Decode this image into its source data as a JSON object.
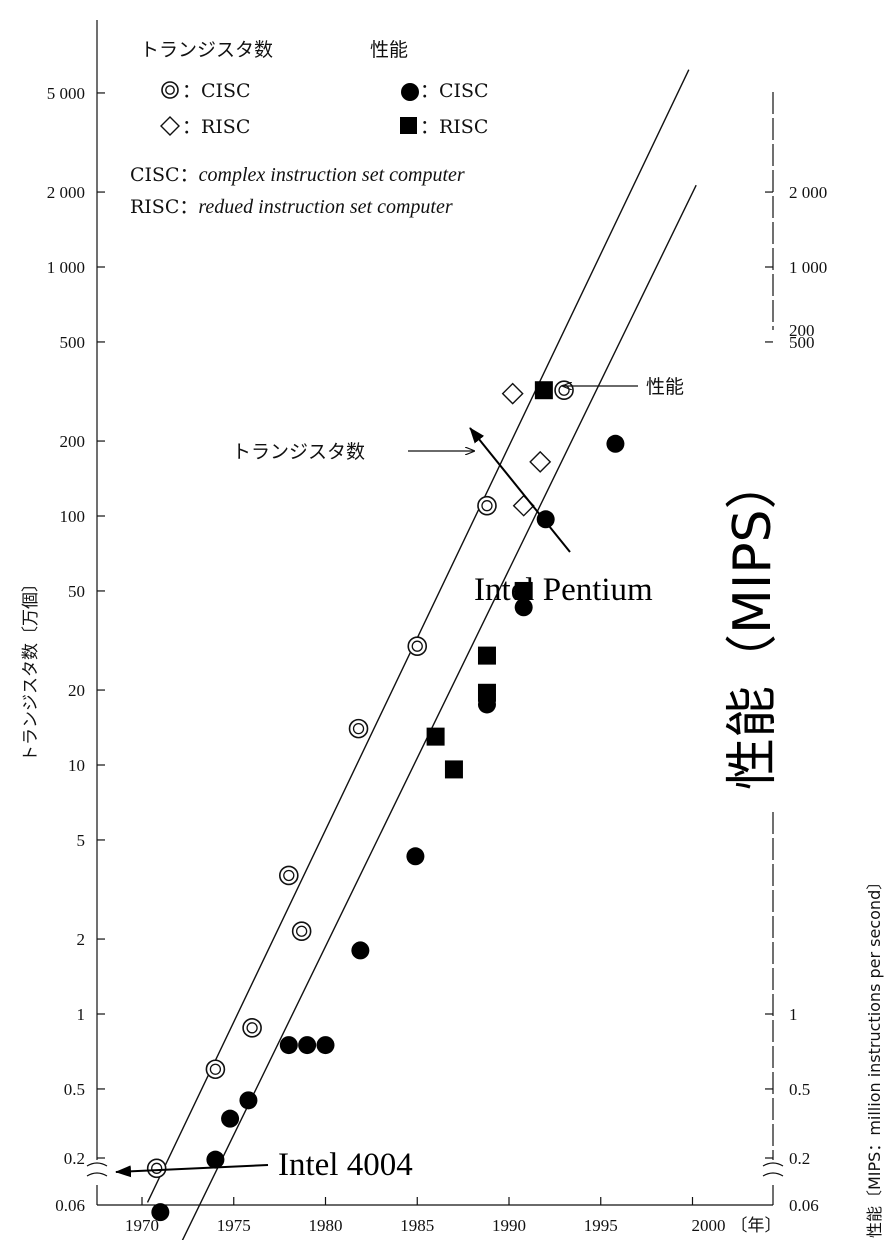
{
  "chart_data": {
    "type": "scatter",
    "y_scale": "log",
    "x_unit_label": "〔年〕",
    "ylabel_left": "トランジスタ数〔万個〕",
    "ylabel_right_small": "性能〔MIPS：million instructions per second〕",
    "ylabel_right_large": "性能（MIPS）",
    "x_ticks": [
      1970,
      1975,
      1980,
      1985,
      1990,
      1995,
      2000
    ],
    "y_left_ticks": [
      "5 000",
      "2 000",
      "1 000",
      "500",
      "200",
      "100",
      "50",
      "20",
      "10",
      "5",
      "2",
      "1",
      "0.5",
      "0.2",
      "0.06"
    ],
    "y_left_tick_values": [
      5000,
      2000,
      1000,
      500,
      200,
      100,
      50,
      20,
      10,
      5,
      2,
      1,
      0.5,
      0.2
    ],
    "y_right_ticks": [
      "2 000",
      "1 000",
      "500",
      "200",
      "1",
      "0.5",
      "0.2",
      "0.06"
    ],
    "y_right_tick_values": [
      2000,
      1000,
      500,
      200,
      1,
      0.5,
      0.2
    ],
    "y_bottom_label": "0.06",
    "legend": {
      "transistor_heading": "トランジスタ数",
      "performance_heading": "性能",
      "t_cisc": "：CISC",
      "t_risc": "：RISC",
      "p_cisc": "：CISC",
      "p_risc": "：RISC"
    },
    "notes": [
      {
        "abbr": "CISC",
        "sep": "：",
        "text": "complex instruction set computer"
      },
      {
        "abbr": "RISC",
        "sep": "：",
        "text": "redued instruction set computer"
      }
    ],
    "series": [
      {
        "name": "トランジスタ数 CISC",
        "marker": "double-circle",
        "points": [
          [
            1970.8,
            0.24
          ],
          [
            1974,
            0.6
          ],
          [
            1976,
            0.88
          ],
          [
            1978,
            3.6
          ],
          [
            1978.7,
            2.15
          ],
          [
            1981.8,
            14
          ],
          [
            1985,
            30
          ],
          [
            1988.8,
            110
          ],
          [
            1993,
            320
          ]
        ]
      },
      {
        "name": "トランジスタ数 RISC",
        "marker": "diamond",
        "points": [
          [
            1990.2,
            310
          ],
          [
            1990.8,
            110
          ],
          [
            1991.7,
            165
          ]
        ]
      },
      {
        "name": "性能 CISC",
        "marker": "filled-circle",
        "points": [
          [
            1971,
            0.16
          ],
          [
            1974,
            0.26
          ],
          [
            1974.8,
            0.38
          ],
          [
            1975.8,
            0.45
          ],
          [
            1978,
            0.75
          ],
          [
            1979,
            0.75
          ],
          [
            1980,
            0.75
          ],
          [
            1981.9,
            1.8
          ],
          [
            1984.9,
            4.3
          ],
          [
            1988.8,
            17.5
          ],
          [
            1990.8,
            43
          ],
          [
            1992,
            97
          ],
          [
            1995.8,
            195
          ]
        ]
      },
      {
        "name": "性能 RISC",
        "marker": "filled-square",
        "points": [
          [
            1986,
            13
          ],
          [
            1987,
            9.6
          ],
          [
            1988.8,
            19.5
          ],
          [
            1988.8,
            27.5
          ],
          [
            1990.8,
            50
          ],
          [
            1991.9,
            320
          ]
        ]
      }
    ],
    "trend_lines": [
      {
        "label": "トランジスタ数",
        "from": [
          1970.3,
          0.175
        ],
        "to": [
          1999.8,
          6200
        ]
      },
      {
        "label": "性能",
        "from": [
          1971.6,
          0.1
        ],
        "to": [
          2000.2,
          2130
        ]
      }
    ],
    "annotations": [
      {
        "text": "トランジスタ数",
        "arrow_to": "transistor-trend-line"
      },
      {
        "text": "性能",
        "arrow_to": "performance-trend-line"
      },
      {
        "text": "Intel Pentium",
        "arrow_to": "transistor-trend-line"
      },
      {
        "text": "Intel 4004",
        "arrow_to": "y-axis-break"
      }
    ]
  }
}
